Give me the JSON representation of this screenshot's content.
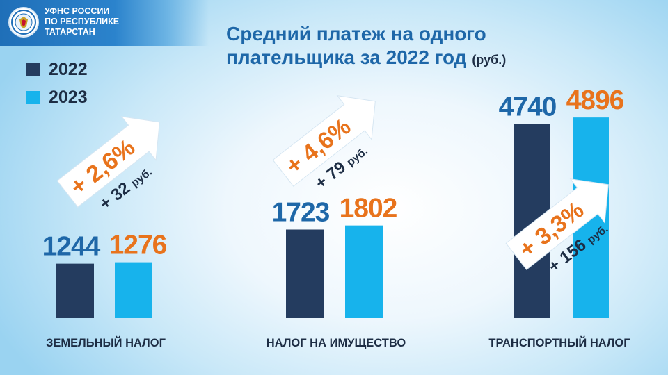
{
  "header": {
    "org_line1": "УФНС РОССИИ",
    "org_line2": "ПО РЕСПУБЛИКЕ",
    "org_line3": "ТАТАРСТАН"
  },
  "title": {
    "line1": "Средний платеж на одного",
    "line2": "плательщика за 2022 год",
    "unit": "(руб.)"
  },
  "legend": [
    {
      "label": "2022",
      "color": "#243c5f"
    },
    {
      "label": "2023",
      "color": "#17b3ec"
    }
  ],
  "colors": {
    "value_2022": "#1e67a8",
    "value_2023": "#e8731c",
    "arrow": "#ffffff",
    "percent": "#e8731c",
    "text_dark": "#1d2d44"
  },
  "chart_data": {
    "type": "bar",
    "categories": [
      "ЗЕМЕЛЬНЫЙ НАЛОГ",
      "НАЛОГ НА ИМУЩЕСТВО",
      "ТРАНСПОРТНЫЙ НАЛОГ"
    ],
    "series": [
      {
        "name": "2022",
        "values": [
          1244,
          1723,
          4740
        ]
      },
      {
        "name": "2023",
        "values": [
          1276,
          1802,
          4896
        ]
      }
    ],
    "value_labels": {
      "2022": [
        "1244",
        "1723",
        "4740"
      ],
      "2023": [
        "1276",
        "1802",
        "4896"
      ]
    },
    "annotations": [
      {
        "percent": "+ 2,6%",
        "amount": "+ 32",
        "unit": "руб."
      },
      {
        "percent": "+ 4,6%",
        "amount": "+ 79",
        "unit": "руб."
      },
      {
        "percent": "+ 3,3%",
        "amount": "+ 156",
        "unit": "руб."
      }
    ],
    "ylabel": "",
    "grid": false
  }
}
